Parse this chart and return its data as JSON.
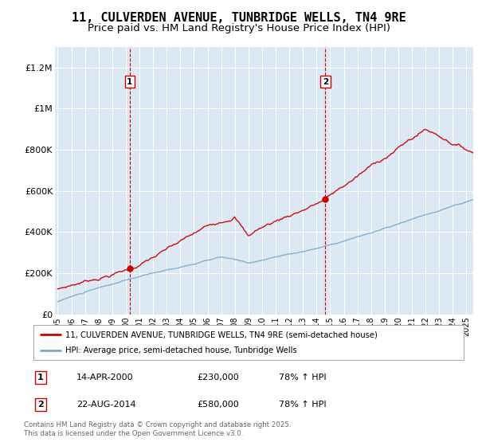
{
  "title": "11, CULVERDEN AVENUE, TUNBRIDGE WELLS, TN4 9RE",
  "subtitle": "Price paid vs. HM Land Registry's House Price Index (HPI)",
  "ylim": [
    0,
    1300000
  ],
  "xlim_start": 1994.8,
  "xlim_end": 2025.5,
  "yticks": [
    0,
    200000,
    400000,
    600000,
    800000,
    1000000,
    1200000
  ],
  "ytick_labels": [
    "£0",
    "£200K",
    "£400K",
    "£600K",
    "£800K",
    "£1M",
    "£1.2M"
  ],
  "sale1_year": 2000.286,
  "sale1_price": 230000,
  "sale1_label": "14-APR-2000",
  "sale1_pct": "78% ↑ HPI",
  "sale2_year": 2014.64,
  "sale2_price": 580000,
  "sale2_label": "22-AUG-2014",
  "sale2_pct": "78% ↑ HPI",
  "legend1": "11, CULVERDEN AVENUE, TUNBRIDGE WELLS, TN4 9RE (semi-detached house)",
  "legend2": "HPI: Average price, semi-detached house, Tunbridge Wells",
  "footer": "Contains HM Land Registry data © Crown copyright and database right 2025.\nThis data is licensed under the Open Government Licence v3.0.",
  "bg_color": "#dce9f5",
  "red_line_color": "#cc0000",
  "blue_line_color": "#7aaacc",
  "grid_color": "#ffffff",
  "title_fontsize": 11,
  "subtitle_fontsize": 9.5,
  "tick_fontsize": 8
}
